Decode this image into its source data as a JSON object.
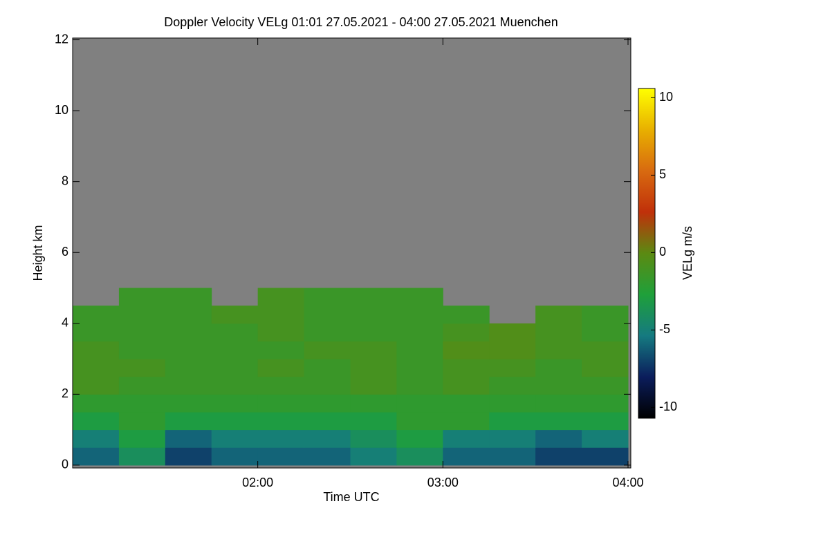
{
  "chart_data": {
    "type": "heatmap",
    "title": "Doppler Velocity VELg   01:01 27.05.2021 - 04:00 27.05.2021 Muenchen",
    "x_label": "Time UTC",
    "y_label": "Height km",
    "colorbar_label": "VELg m/s",
    "xlim": [
      1.0,
      4.015
    ],
    "xticks": [
      {
        "value": 2,
        "label": "02:00"
      },
      {
        "value": 3,
        "label": "03:00"
      },
      {
        "value": 4,
        "label": "04:00"
      }
    ],
    "ylim": [
      -0.08,
      12.05
    ],
    "yticks": [
      0,
      2,
      4,
      6,
      8,
      10,
      12
    ],
    "x_bins": [
      1.0,
      1.25,
      1.5,
      1.75,
      2.0,
      2.25,
      2.5,
      2.75,
      3.0,
      3.25,
      3.5,
      3.75,
      4.0
    ],
    "y_bins": [
      0,
      0.5,
      1,
      1.5,
      2,
      2.5,
      3,
      3.5,
      4,
      4.5,
      5
    ],
    "values": [
      [
        -6,
        -4,
        -7,
        -6,
        -6,
        -6,
        -5,
        -4,
        -6,
        -6,
        -7,
        -7
      ],
      [
        -5,
        -3,
        -6,
        -5,
        -5,
        -5,
        -4,
        -3,
        -5,
        -5,
        -6,
        -5
      ],
      [
        -3,
        -2,
        -3,
        -3,
        -3,
        -3,
        -3,
        -2,
        -2,
        -3,
        -3,
        -3
      ],
      [
        -2,
        -2,
        -2,
        -2,
        -2,
        -2,
        -2,
        -2,
        -2,
        -2,
        -2,
        -2
      ],
      [
        -1,
        -1.5,
        -1.5,
        -1.5,
        -1.5,
        -1.5,
        -1,
        -1.5,
        -1,
        -1.5,
        -1.5,
        -1.5
      ],
      [
        -1,
        -1,
        -1.5,
        -1.5,
        -1,
        -1.5,
        -1,
        -1.5,
        -1,
        -1,
        -1.5,
        -1
      ],
      [
        -1,
        -1.5,
        -1.5,
        -1.5,
        -1.5,
        -1,
        -1,
        -1.5,
        -0.5,
        -0.5,
        -1,
        -1
      ],
      [
        -1.5,
        -1.5,
        -1.5,
        -1.5,
        -1,
        -1.5,
        -1.5,
        -1.5,
        -1,
        -0.5,
        -1,
        -1.5
      ],
      [
        -1.5,
        -1.5,
        -1.5,
        -1,
        -1,
        -1.5,
        -1.5,
        -1.5,
        -1.5,
        null,
        -1,
        -1.5
      ],
      [
        null,
        -1.5,
        -1.5,
        null,
        -1,
        -1.5,
        -1.5,
        -1.5,
        null,
        null,
        null,
        null
      ]
    ],
    "clim": [
      -10.7,
      10.6
    ],
    "cticks": [
      -10,
      -5,
      0,
      5,
      10
    ],
    "colormap": [
      "#000000",
      "#0b1d5c",
      "#157a80",
      "#1fa03a",
      "#5b8a12",
      "#c0300a",
      "#d86a10",
      "#e8b000",
      "#ffff00"
    ],
    "missing_color": "#808080"
  }
}
